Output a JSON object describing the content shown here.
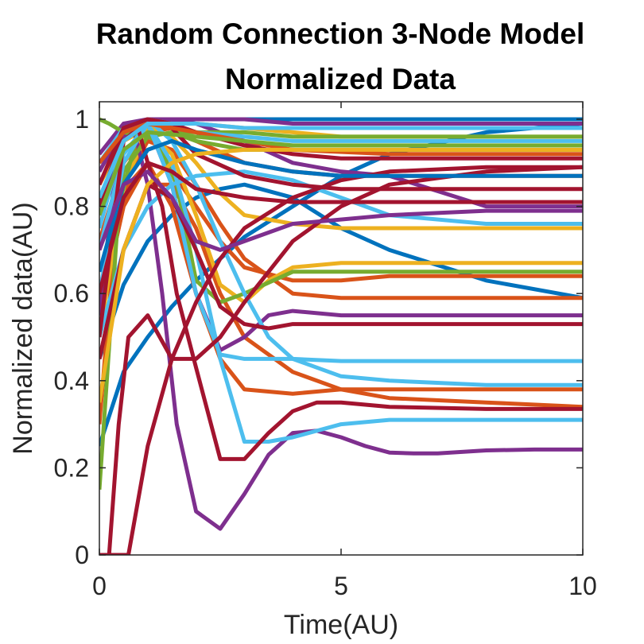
{
  "chart_data": {
    "type": "line",
    "title": [
      "Random Connection 3-Node Model",
      "Normalized Data"
    ],
    "xlabel": "Time(AU)",
    "ylabel": "Normalized data(AU)",
    "xlim": [
      0,
      10
    ],
    "ylim": [
      0,
      1.05
    ],
    "xticks": [
      "0",
      "5",
      "10"
    ],
    "yticks": [
      "0",
      "0.2",
      "0.4",
      "0.6",
      "0.8",
      "1"
    ],
    "grid": false,
    "legend": "none",
    "colors": [
      "#0072BD",
      "#D95319",
      "#EDB120",
      "#7E2F8E",
      "#77AC30",
      "#4DBEEE",
      "#A2142F"
    ],
    "series": [
      {
        "color": "#0072BD",
        "x": [
          0,
          0.5,
          1,
          1.5,
          2,
          2.5,
          3,
          4,
          5,
          6,
          8,
          10
        ],
        "y": [
          0.25,
          0.42,
          0.5,
          0.57,
          0.63,
          0.68,
          0.73,
          0.8,
          0.87,
          0.92,
          0.97,
          0.99
        ]
      },
      {
        "color": "#0072BD",
        "x": [
          0,
          0.5,
          1,
          1.5,
          2,
          2.5,
          3,
          4,
          5,
          6,
          8,
          10
        ],
        "y": [
          0.45,
          0.62,
          0.72,
          0.78,
          0.82,
          0.84,
          0.85,
          0.82,
          0.75,
          0.7,
          0.63,
          0.59
        ]
      },
      {
        "color": "#0072BD",
        "x": [
          0,
          0.5,
          1,
          2,
          3,
          4,
          6,
          8,
          10
        ],
        "y": [
          0.8,
          0.95,
          0.99,
          1.0,
          1.0,
          1.0,
          1.0,
          1.0,
          1.0
        ]
      },
      {
        "color": "#D95319",
        "x": [
          0,
          0.3,
          0.6,
          1,
          1.5,
          2,
          2.5,
          3,
          4,
          5,
          6,
          8,
          10
        ],
        "y": [
          0.3,
          0.7,
          0.85,
          0.9,
          0.8,
          0.6,
          0.45,
          0.38,
          0.37,
          0.38,
          0.38,
          0.38,
          0.38
        ]
      },
      {
        "color": "#D95319",
        "x": [
          0,
          0.5,
          1,
          1.5,
          2,
          2.5,
          3,
          4,
          5,
          6,
          8,
          10
        ],
        "y": [
          0.55,
          0.8,
          0.9,
          0.88,
          0.8,
          0.72,
          0.66,
          0.63,
          0.63,
          0.64,
          0.64,
          0.64
        ]
      },
      {
        "color": "#D95319",
        "x": [
          0,
          0.5,
          1,
          1.5,
          2,
          2.5,
          3,
          4,
          5,
          6,
          8,
          10
        ],
        "y": [
          0.6,
          0.85,
          0.95,
          0.93,
          0.85,
          0.76,
          0.68,
          0.6,
          0.59,
          0.59,
          0.59,
          0.59
        ]
      },
      {
        "color": "#D95319",
        "x": [
          0,
          0.5,
          1,
          1.5,
          2,
          3,
          4,
          5,
          6,
          8,
          10
        ],
        "y": [
          0.72,
          0.9,
          0.97,
          0.98,
          0.95,
          0.9,
          0.88,
          0.87,
          0.87,
          0.87,
          0.87
        ]
      },
      {
        "color": "#D95319",
        "x": [
          0,
          0.5,
          1,
          1.5,
          2,
          2.5,
          3,
          4,
          5,
          6,
          8,
          10
        ],
        "y": [
          0.45,
          0.7,
          0.85,
          0.85,
          0.75,
          0.6,
          0.5,
          0.42,
          0.38,
          0.36,
          0.35,
          0.34
        ]
      },
      {
        "color": "#EDB120",
        "x": [
          0,
          0.5,
          1,
          1.5,
          2,
          2.5,
          3,
          3.5,
          4,
          5,
          6,
          8,
          10
        ],
        "y": [
          0.5,
          0.85,
          0.97,
          0.92,
          0.78,
          0.62,
          0.58,
          0.63,
          0.66,
          0.67,
          0.67,
          0.67,
          0.67
        ]
      },
      {
        "color": "#EDB120",
        "x": [
          0,
          0.5,
          1,
          1.5,
          2,
          2.5,
          3,
          4,
          5,
          6,
          8,
          10
        ],
        "y": [
          0.7,
          0.9,
          0.98,
          0.96,
          0.9,
          0.83,
          0.78,
          0.76,
          0.75,
          0.75,
          0.75,
          0.75
        ]
      },
      {
        "color": "#EDB120",
        "x": [
          0,
          0.5,
          1,
          1.5,
          2,
          3,
          4,
          5,
          6,
          8,
          10
        ],
        "y": [
          0.85,
          0.95,
          0.98,
          0.99,
          0.99,
          0.98,
          0.97,
          0.96,
          0.96,
          0.96,
          0.96
        ]
      },
      {
        "color": "#7E2F8E",
        "x": [
          0,
          0.4,
          0.7,
          1,
          1.3,
          1.6,
          2,
          2.5,
          3,
          3.5,
          4,
          4.5,
          5,
          5.5,
          6,
          6.5,
          7,
          8,
          9,
          10
        ],
        "y": [
          0.55,
          0.95,
          0.98,
          0.85,
          0.6,
          0.3,
          0.1,
          0.06,
          0.14,
          0.23,
          0.28,
          0.285,
          0.27,
          0.25,
          0.235,
          0.233,
          0.233,
          0.24,
          0.242,
          0.242
        ]
      },
      {
        "color": "#7E2F8E",
        "x": [
          0,
          0.5,
          1,
          1.5,
          2,
          2.5,
          3,
          3.5,
          4,
          5,
          6,
          8,
          10
        ],
        "y": [
          0.8,
          0.97,
          0.99,
          0.85,
          0.6,
          0.47,
          0.5,
          0.55,
          0.56,
          0.55,
          0.55,
          0.55,
          0.55
        ]
      },
      {
        "color": "#7E2F8E",
        "x": [
          0,
          0.5,
          1,
          2,
          3,
          4,
          5,
          6,
          8,
          10
        ],
        "y": [
          0.88,
          0.98,
          1.0,
          0.99,
          0.95,
          0.9,
          0.88,
          0.87,
          0.8,
          0.8
        ]
      },
      {
        "color": "#7E2F8E",
        "x": [
          0,
          0.5,
          1,
          2,
          3,
          4,
          6,
          8,
          10
        ],
        "y": [
          0.92,
          0.99,
          1.0,
          1.0,
          1.0,
          0.99,
          0.99,
          0.99,
          0.99
        ]
      },
      {
        "color": "#77AC30",
        "x": [
          0,
          0.4,
          0.8,
          1.2,
          1.6,
          2,
          2.5,
          3,
          4,
          5,
          6,
          8,
          10
        ],
        "y": [
          0.15,
          0.8,
          0.97,
          0.95,
          0.85,
          0.63,
          0.58,
          0.6,
          0.65,
          0.65,
          0.65,
          0.65,
          0.65
        ]
      },
      {
        "color": "#77AC30",
        "x": [
          0,
          0.2,
          0.5,
          1,
          1.5,
          2,
          3,
          4,
          6,
          8,
          10
        ],
        "y": [
          1.0,
          0.99,
          0.97,
          0.96,
          0.97,
          0.97,
          0.97,
          0.96,
          0.96,
          0.96,
          0.96
        ]
      },
      {
        "color": "#77AC30",
        "x": [
          0,
          0.5,
          1,
          1.5,
          2,
          3,
          4,
          6,
          8,
          10
        ],
        "y": [
          0.6,
          0.88,
          0.96,
          0.97,
          0.95,
          0.93,
          0.93,
          0.93,
          0.93,
          0.93
        ]
      },
      {
        "color": "#4DBEEE",
        "x": [
          0,
          0.5,
          1,
          1.5,
          2,
          2.5,
          3,
          3.5,
          4,
          5,
          6,
          8,
          10
        ],
        "y": [
          0.6,
          0.9,
          0.99,
          0.9,
          0.7,
          0.45,
          0.26,
          0.26,
          0.27,
          0.3,
          0.31,
          0.31,
          0.31
        ]
      },
      {
        "color": "#4DBEEE",
        "x": [
          0,
          0.5,
          1,
          1.5,
          2,
          2.5,
          3,
          4,
          5,
          6,
          8,
          10
        ],
        "y": [
          0.7,
          0.92,
          0.99,
          0.85,
          0.6,
          0.46,
          0.45,
          0.45,
          0.445,
          0.445,
          0.445,
          0.445
        ]
      },
      {
        "color": "#4DBEEE",
        "x": [
          0,
          0.5,
          1,
          1.5,
          2,
          2.5,
          3,
          3.5,
          4,
          5,
          6,
          8,
          10
        ],
        "y": [
          0.75,
          0.95,
          1.0,
          0.95,
          0.85,
          0.72,
          0.6,
          0.5,
          0.45,
          0.41,
          0.4,
          0.39,
          0.39
        ]
      },
      {
        "color": "#4DBEEE",
        "x": [
          0,
          0.5,
          1,
          1.5,
          2,
          3,
          4,
          5,
          6,
          8,
          10
        ],
        "y": [
          0.9,
          0.98,
          1.0,
          0.99,
          0.97,
          0.96,
          0.95,
          0.95,
          0.95,
          0.95,
          0.95
        ]
      },
      {
        "color": "#4DBEEE",
        "x": [
          0,
          0.5,
          1,
          1.5,
          2,
          3,
          4,
          5,
          6,
          8,
          10
        ],
        "y": [
          0.5,
          0.7,
          0.8,
          0.85,
          0.87,
          0.88,
          0.86,
          0.82,
          0.78,
          0.76,
          0.76
        ]
      },
      {
        "color": "#A2142F",
        "x": [
          0,
          0.3,
          0.6,
          1,
          1.5,
          2,
          2.5,
          3,
          4,
          5,
          6,
          8,
          10
        ],
        "y": [
          0.0,
          0.0,
          0.0,
          0.25,
          0.45,
          0.58,
          0.68,
          0.75,
          0.82,
          0.86,
          0.88,
          0.89,
          0.89
        ]
      },
      {
        "color": "#A2142F",
        "x": [
          0,
          0.5,
          0.8,
          1,
          1.3,
          1.6,
          2,
          2.5,
          3,
          3.5,
          4,
          4.5,
          5,
          6,
          8,
          10
        ],
        "y": [
          0.5,
          0.95,
          0.98,
          0.9,
          0.8,
          0.6,
          0.43,
          0.22,
          0.22,
          0.28,
          0.33,
          0.35,
          0.35,
          0.34,
          0.335,
          0.335
        ]
      },
      {
        "color": "#A2142F",
        "x": [
          0,
          0.5,
          1,
          1.5,
          2,
          2.5,
          3,
          3.5,
          4,
          5,
          6,
          8,
          10
        ],
        "y": [
          0.45,
          0.7,
          0.85,
          0.82,
          0.7,
          0.57,
          0.53,
          0.52,
          0.53,
          0.53,
          0.53,
          0.53,
          0.53
        ]
      },
      {
        "color": "#A2142F",
        "x": [
          0,
          0.5,
          1,
          1.5,
          2,
          3,
          4,
          5,
          6,
          8,
          10
        ],
        "y": [
          0.8,
          0.98,
          1.0,
          0.98,
          0.92,
          0.87,
          0.85,
          0.84,
          0.84,
          0.84,
          0.84
        ]
      },
      {
        "color": "#A2142F",
        "x": [
          0,
          0.5,
          1,
          1.5,
          2,
          3,
          4,
          5,
          6,
          8,
          10
        ],
        "y": [
          0.85,
          0.98,
          1.0,
          0.99,
          0.97,
          0.94,
          0.92,
          0.91,
          0.91,
          0.91,
          0.91
        ]
      },
      {
        "color": "#A2142F",
        "x": [
          0,
          0.2,
          0.4,
          0.6,
          1,
          1.5,
          2,
          2.5,
          3,
          3.5,
          4,
          5,
          6,
          8,
          10
        ],
        "y": [
          0.0,
          0.0,
          0.3,
          0.5,
          0.55,
          0.45,
          0.45,
          0.5,
          0.58,
          0.65,
          0.72,
          0.8,
          0.85,
          0.88,
          0.89
        ]
      },
      {
        "color": "#0072BD",
        "x": [
          0,
          0.5,
          1,
          1.5,
          2,
          3,
          4,
          5,
          6,
          8,
          10
        ],
        "y": [
          0.65,
          0.85,
          0.93,
          0.95,
          0.93,
          0.9,
          0.88,
          0.87,
          0.87,
          0.87,
          0.87
        ]
      },
      {
        "color": "#D95319",
        "x": [
          0,
          0.5,
          1,
          2,
          3,
          4,
          6,
          8,
          10
        ],
        "y": [
          0.9,
          0.97,
          0.99,
          0.97,
          0.95,
          0.93,
          0.92,
          0.92,
          0.92
        ]
      },
      {
        "color": "#EDB120",
        "x": [
          0,
          0.5,
          1,
          1.5,
          2,
          3,
          4,
          6,
          8,
          10
        ],
        "y": [
          0.35,
          0.7,
          0.85,
          0.9,
          0.92,
          0.93,
          0.93,
          0.93,
          0.93,
          0.93
        ]
      },
      {
        "color": "#7E2F8E",
        "x": [
          0,
          0.5,
          1,
          1.5,
          2,
          2.5,
          3,
          4,
          6,
          8,
          10
        ],
        "y": [
          0.7,
          0.85,
          0.88,
          0.82,
          0.72,
          0.7,
          0.72,
          0.76,
          0.78,
          0.79,
          0.79
        ]
      },
      {
        "color": "#77AC30",
        "x": [
          0,
          0.5,
          1,
          2,
          3,
          4,
          6,
          8,
          10
        ],
        "y": [
          0.78,
          0.93,
          0.97,
          0.96,
          0.95,
          0.94,
          0.94,
          0.94,
          0.94
        ]
      },
      {
        "color": "#4DBEEE",
        "x": [
          0,
          0.5,
          1,
          2,
          3,
          4,
          6,
          8,
          10
        ],
        "y": [
          0.82,
          0.95,
          0.99,
          0.99,
          0.98,
          0.98,
          0.98,
          0.98,
          0.98
        ]
      },
      {
        "color": "#A2142F",
        "x": [
          0,
          0.5,
          1,
          1.5,
          2,
          3,
          4,
          6,
          8,
          10
        ],
        "y": [
          0.6,
          0.82,
          0.9,
          0.88,
          0.84,
          0.82,
          0.81,
          0.81,
          0.81,
          0.81
        ]
      }
    ]
  }
}
